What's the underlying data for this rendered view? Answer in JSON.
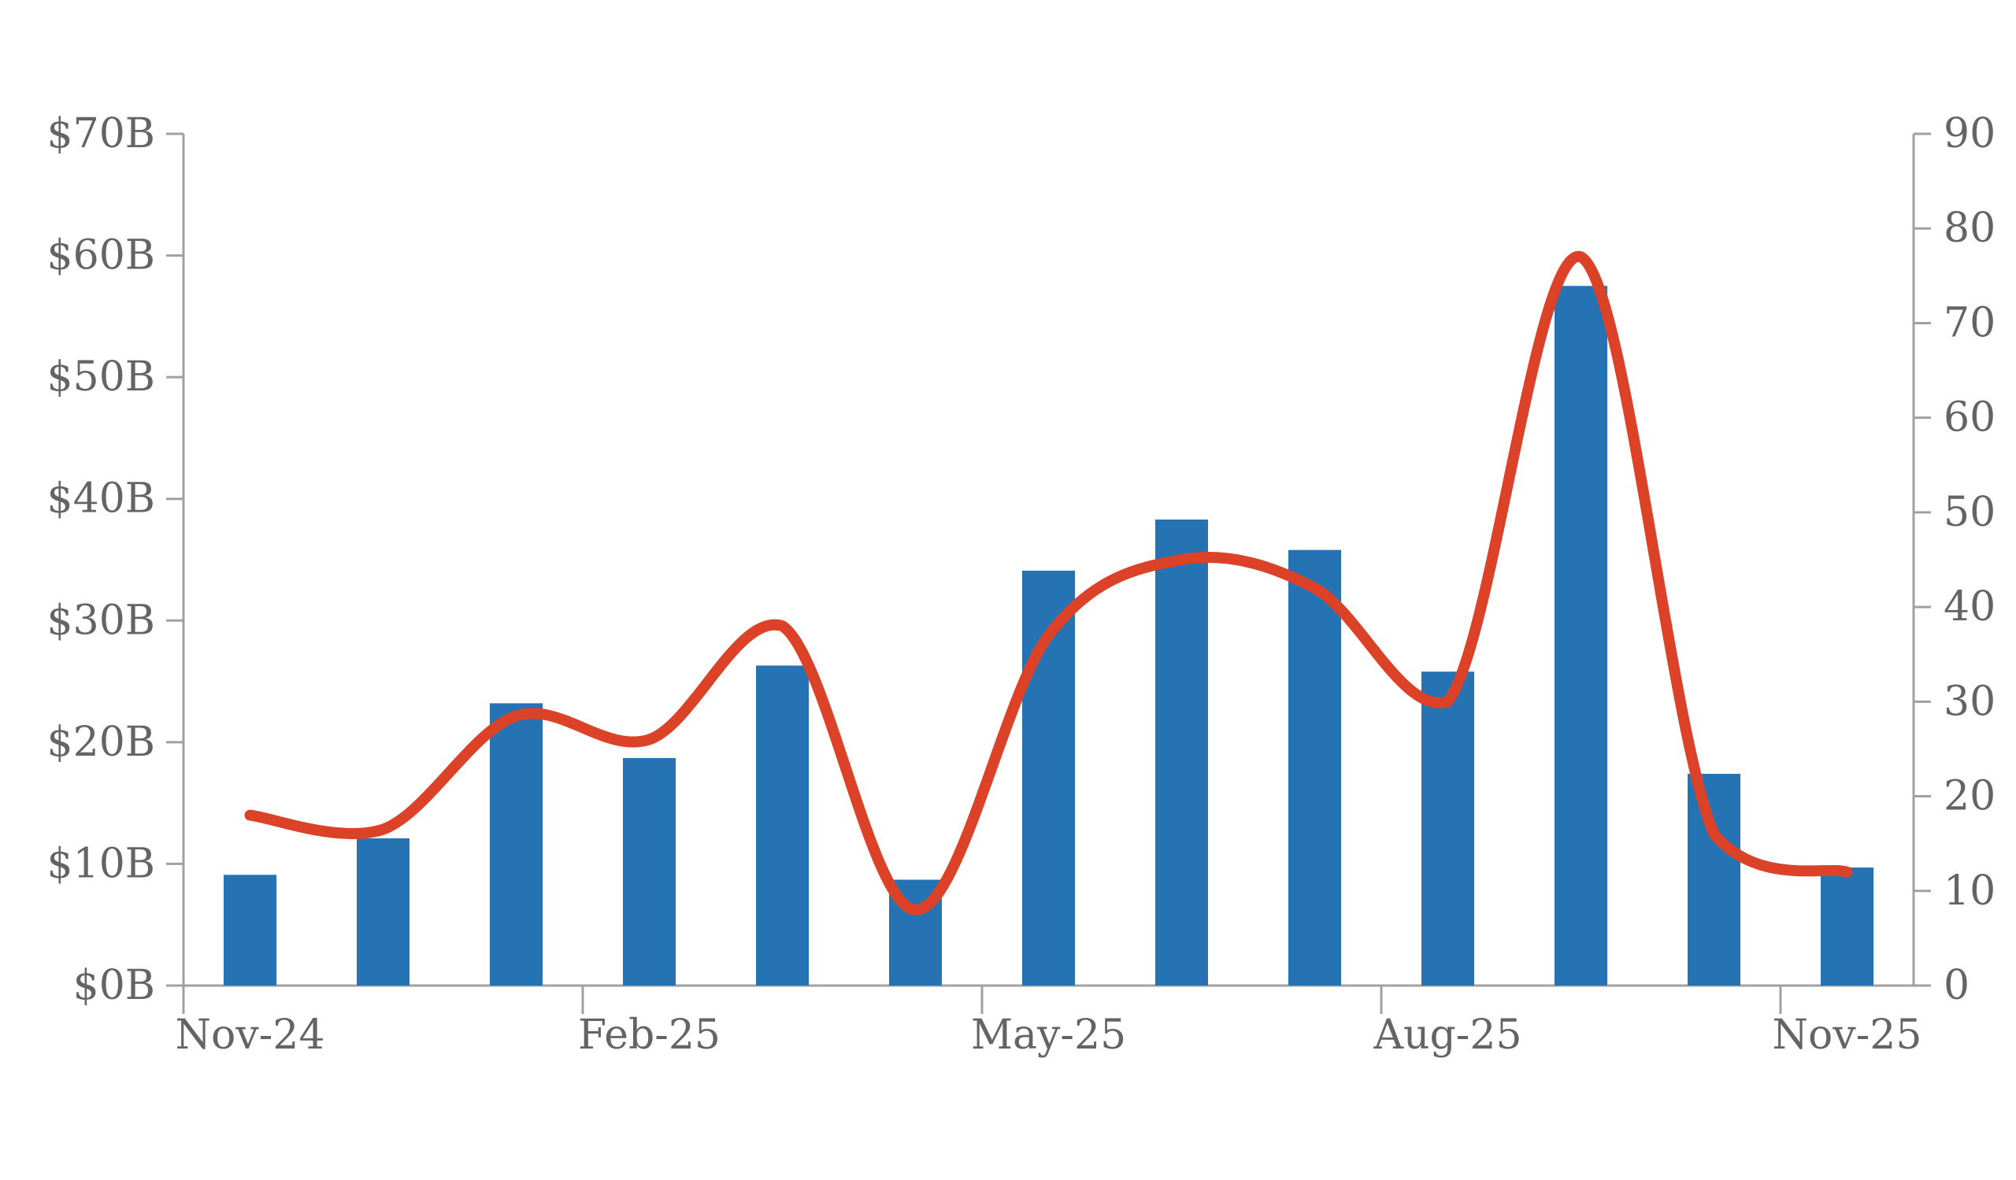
{
  "chart_data": {
    "type": "combo",
    "title": "",
    "subtitle": "",
    "legend": null,
    "grid": false,
    "categories": [
      "Nov-24",
      "Dec-24",
      "Jan-25",
      "Feb-25",
      "Mar-25",
      "Apr-25",
      "May-25",
      "Jun-25",
      "Jul-25",
      "Aug-25",
      "Sep-25",
      "Oct-25",
      "Nov-25"
    ],
    "series": [
      {
        "name": "monthly-bars",
        "type": "bar",
        "axis": "left",
        "color": "#2573b2",
        "values": [
          9.1,
          12.1,
          23.2,
          18.7,
          26.3,
          8.7,
          34.1,
          38.3,
          35.8,
          25.8,
          57.5,
          17.4,
          9.7
        ]
      },
      {
        "name": "monthly-smooth-line",
        "type": "spline",
        "axis": "right",
        "color": "#dc4227",
        "values": [
          18,
          16.5,
          28.5,
          26,
          38,
          8,
          37,
          45,
          42,
          30,
          77,
          16,
          12
        ]
      }
    ],
    "left_axis": {
      "min": 0,
      "max": 70,
      "step": 10,
      "tick_labels": [
        "$0B",
        "$10B",
        "$20B",
        "$30B",
        "$40B",
        "$50B",
        "$60B",
        "$70B"
      ]
    },
    "right_axis": {
      "min": 0,
      "max": 90,
      "step": 10,
      "tick_labels": [
        "0",
        "10",
        "20",
        "30",
        "40",
        "50",
        "60",
        "70",
        "80",
        "90"
      ]
    },
    "x_axis": {
      "tick_labels": [
        "Nov-24",
        "Feb-25",
        "May-25",
        "Aug-25",
        "Nov-25"
      ],
      "tick_label_category_indices": [
        0,
        3,
        6,
        9,
        12
      ],
      "boundary_tick_category_indices": [
        0,
        3,
        6,
        9,
        12
      ]
    },
    "styles": {
      "axis_color": "#a0a0a0",
      "text_color": "#646464",
      "background": "#ffffff"
    }
  }
}
